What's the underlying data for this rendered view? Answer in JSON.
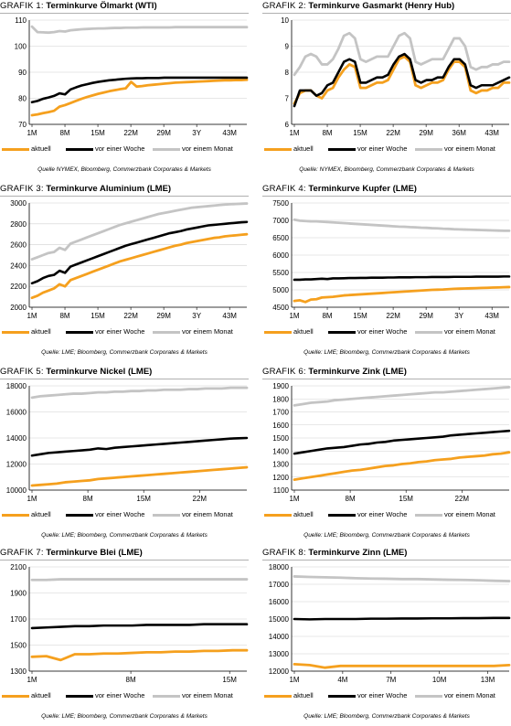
{
  "colors": {
    "aktuell": "#f5a01e",
    "woche": "#000000",
    "monat": "#c4c4c4",
    "grid": "#d0d0d0"
  },
  "chart_data": [
    {
      "type": "line",
      "caption": "GRAFIK 1:",
      "title": "Terminkurve Ölmarkt (WTI)",
      "ylim": [
        70,
        110
      ],
      "yticks": [
        70,
        80,
        90,
        100,
        110
      ],
      "xlabels": [
        "1M",
        "8M",
        "15M",
        "22M",
        "29M",
        "3Y",
        "43M"
      ],
      "source": "Quelle NYMEX, Bloomberg, Commerzbank Corporates & Markets",
      "series": [
        {
          "name": "aktuell",
          "values": [
            73.5,
            73.8,
            74.3,
            74.7,
            75.2,
            76.8,
            77.4,
            78.2,
            79.0,
            79.8,
            80.5,
            81.1,
            81.7,
            82.2,
            82.7,
            83.1,
            83.5,
            83.8,
            86.3,
            84.5,
            84.7,
            85.0,
            85.2,
            85.4,
            85.6,
            85.8,
            86.0,
            86.1,
            86.2,
            86.3,
            86.4,
            86.5,
            86.6,
            86.7,
            86.8,
            86.9,
            86.9,
            87.0,
            87.0,
            87.1
          ]
        },
        {
          "name": "vor einer Woche",
          "values": [
            78.5,
            79.0,
            79.8,
            80.3,
            80.9,
            81.9,
            81.5,
            83.4,
            84.2,
            84.9,
            85.4,
            85.9,
            86.3,
            86.6,
            86.9,
            87.1,
            87.3,
            87.5,
            87.6,
            87.7,
            87.7,
            87.8,
            87.8,
            87.8,
            87.9,
            87.9,
            87.9,
            87.9,
            87.9,
            87.9,
            87.9,
            87.9,
            87.9,
            87.9,
            87.9,
            87.9,
            87.9,
            87.9,
            87.9,
            87.9
          ]
        },
        {
          "name": "vor einem Monat",
          "values": [
            107.5,
            105.4,
            105.3,
            105.2,
            105.4,
            105.8,
            105.6,
            106.1,
            106.3,
            106.5,
            106.6,
            106.7,
            106.8,
            106.8,
            106.9,
            107.0,
            107.0,
            107.1,
            107.1,
            107.1,
            107.2,
            107.2,
            107.2,
            107.2,
            107.2,
            107.2,
            107.3,
            107.3,
            107.3,
            107.3,
            107.3,
            107.3,
            107.3,
            107.3,
            107.3,
            107.3,
            107.3,
            107.3,
            107.3,
            107.3
          ]
        }
      ]
    },
    {
      "type": "line",
      "caption": "GRAFIK 2:",
      "title": "Terminkurve Gasmarkt (Henry Hub)",
      "ylim": [
        6,
        10
      ],
      "yticks": [
        6,
        7,
        8,
        9,
        10
      ],
      "xlabels": [
        "1M",
        "8M",
        "15M",
        "22M",
        "29M",
        "36M",
        "43M"
      ],
      "source": "Quelle: NYMEX, Bloomberg, Commerzbank Corporates & Markets",
      "series": [
        {
          "name": "aktuell",
          "values": [
            6.8,
            7.2,
            7.3,
            7.3,
            7.1,
            7.0,
            7.3,
            7.4,
            7.8,
            8.1,
            8.3,
            8.2,
            7.4,
            7.4,
            7.5,
            7.6,
            7.6,
            7.7,
            8.1,
            8.5,
            8.6,
            8.4,
            7.5,
            7.4,
            7.5,
            7.6,
            7.6,
            7.7,
            8.1,
            8.4,
            8.4,
            8.2,
            7.3,
            7.2,
            7.3,
            7.3,
            7.4,
            7.4,
            7.6,
            7.6
          ]
        },
        {
          "name": "vor einer Woche",
          "values": [
            6.7,
            7.3,
            7.3,
            7.3,
            7.1,
            7.2,
            7.5,
            7.6,
            8.0,
            8.4,
            8.5,
            8.4,
            7.6,
            7.6,
            7.7,
            7.8,
            7.8,
            7.9,
            8.3,
            8.6,
            8.7,
            8.5,
            7.7,
            7.6,
            7.7,
            7.7,
            7.8,
            7.8,
            8.2,
            8.5,
            8.5,
            8.3,
            7.5,
            7.4,
            7.5,
            7.5,
            7.5,
            7.6,
            7.7,
            7.8
          ]
        },
        {
          "name": "vor einem Monat",
          "values": [
            7.9,
            8.2,
            8.6,
            8.7,
            8.6,
            8.3,
            8.3,
            8.5,
            8.9,
            9.4,
            9.5,
            9.3,
            8.5,
            8.4,
            8.5,
            8.6,
            8.6,
            8.6,
            9.0,
            9.4,
            9.5,
            9.3,
            8.4,
            8.3,
            8.4,
            8.5,
            8.5,
            8.5,
            8.9,
            9.3,
            9.3,
            9.0,
            8.2,
            8.1,
            8.2,
            8.2,
            8.3,
            8.3,
            8.4,
            8.4
          ]
        }
      ]
    },
    {
      "type": "line",
      "caption": "GRAFIK 3:",
      "title": "Terminkurve Aluminium (LME)",
      "ylim": [
        2000,
        3000
      ],
      "yticks": [
        2000,
        2200,
        2400,
        2600,
        2800,
        3000
      ],
      "xlabels": [
        "1M",
        "8M",
        "15M",
        "22M",
        "29M",
        "3Y",
        "43M"
      ],
      "source": "Quelle: LME; Bloomberg, Commerzbank Corporates & Markets",
      "series": [
        {
          "name": "aktuell",
          "values": [
            2090,
            2110,
            2140,
            2160,
            2180,
            2220,
            2200,
            2260,
            2280,
            2300,
            2320,
            2340,
            2360,
            2380,
            2400,
            2420,
            2440,
            2455,
            2470,
            2485,
            2500,
            2515,
            2530,
            2545,
            2560,
            2575,
            2590,
            2600,
            2615,
            2625,
            2635,
            2645,
            2655,
            2665,
            2670,
            2680,
            2685,
            2690,
            2695,
            2700
          ]
        },
        {
          "name": "vor einer Woche",
          "values": [
            2230,
            2250,
            2280,
            2300,
            2310,
            2350,
            2330,
            2390,
            2410,
            2430,
            2450,
            2470,
            2490,
            2510,
            2530,
            2550,
            2570,
            2590,
            2605,
            2620,
            2635,
            2650,
            2665,
            2680,
            2695,
            2710,
            2720,
            2730,
            2745,
            2755,
            2765,
            2775,
            2785,
            2790,
            2795,
            2800,
            2805,
            2810,
            2815,
            2818
          ]
        },
        {
          "name": "vor einem Monat",
          "values": [
            2460,
            2480,
            2500,
            2520,
            2530,
            2570,
            2550,
            2610,
            2630,
            2650,
            2670,
            2690,
            2710,
            2730,
            2750,
            2770,
            2790,
            2805,
            2820,
            2835,
            2850,
            2865,
            2880,
            2895,
            2905,
            2915,
            2925,
            2935,
            2945,
            2955,
            2960,
            2965,
            2970,
            2975,
            2980,
            2985,
            2988,
            2990,
            2993,
            2995
          ]
        }
      ]
    },
    {
      "type": "line",
      "caption": "GRAFIK 4:",
      "title": "Terminkurve Kupfer (LME)",
      "ylim": [
        4500,
        7500
      ],
      "yticks": [
        4500,
        5000,
        5500,
        6000,
        6500,
        7000,
        7500
      ],
      "xlabels": [
        "1M",
        "8M",
        "15M",
        "22M",
        "29M",
        "3Y",
        "43M"
      ],
      "source": "Quelle: LME; Bloomberg, Commerzbank Corporates & Markets",
      "series": [
        {
          "name": "aktuell",
          "values": [
            4680,
            4700,
            4650,
            4720,
            4730,
            4780,
            4790,
            4800,
            4820,
            4840,
            4850,
            4860,
            4870,
            4880,
            4890,
            4900,
            4910,
            4920,
            4930,
            4940,
            4950,
            4960,
            4970,
            4980,
            4990,
            5000,
            5005,
            5010,
            5020,
            5030,
            5035,
            5040,
            5045,
            5050,
            5055,
            5060,
            5065,
            5070,
            5075,
            5080
          ]
        },
        {
          "name": "vor einer Woche",
          "values": [
            5290,
            5290,
            5300,
            5300,
            5310,
            5320,
            5310,
            5330,
            5330,
            5335,
            5340,
            5340,
            5345,
            5345,
            5350,
            5350,
            5350,
            5355,
            5355,
            5360,
            5360,
            5360,
            5365,
            5365,
            5365,
            5370,
            5370,
            5370,
            5370,
            5375,
            5375,
            5375,
            5375,
            5380,
            5380,
            5380,
            5380,
            5380,
            5385,
            5385
          ]
        },
        {
          "name": "vor einem Monat",
          "values": [
            7020,
            6990,
            6980,
            6970,
            6970,
            6960,
            6950,
            6940,
            6930,
            6920,
            6910,
            6900,
            6890,
            6880,
            6870,
            6860,
            6850,
            6840,
            6830,
            6820,
            6815,
            6805,
            6800,
            6790,
            6785,
            6775,
            6770,
            6760,
            6755,
            6745,
            6740,
            6735,
            6730,
            6725,
            6720,
            6715,
            6710,
            6705,
            6700,
            6700
          ]
        }
      ]
    },
    {
      "type": "line",
      "caption": "GRAFIK 5:",
      "title": "Terminkurve Nickel (LME)",
      "ylim": [
        10000,
        18000
      ],
      "yticks": [
        10000,
        12000,
        14000,
        16000,
        18000
      ],
      "xlabels": [
        "1M",
        "8M",
        "15M",
        "22M"
      ],
      "source": "Quelle: LME; Bloomberg, Commerzbank Corporates & Markets",
      "series": [
        {
          "name": "aktuell",
          "values": [
            10350,
            10400,
            10450,
            10500,
            10600,
            10650,
            10700,
            10750,
            10850,
            10900,
            10950,
            11000,
            11050,
            11100,
            11150,
            11200,
            11250,
            11300,
            11350,
            11400,
            11450,
            11500,
            11550,
            11600,
            11650,
            11700,
            11750
          ]
        },
        {
          "name": "vor einer Woche",
          "values": [
            12650,
            12750,
            12850,
            12900,
            12950,
            13000,
            13050,
            13100,
            13200,
            13150,
            13250,
            13300,
            13350,
            13400,
            13450,
            13500,
            13550,
            13600,
            13650,
            13700,
            13750,
            13800,
            13850,
            13900,
            13950,
            13980,
            14000
          ]
        },
        {
          "name": "vor einem Monat",
          "values": [
            17100,
            17200,
            17250,
            17300,
            17350,
            17400,
            17400,
            17450,
            17500,
            17500,
            17550,
            17550,
            17600,
            17600,
            17650,
            17650,
            17700,
            17700,
            17700,
            17750,
            17750,
            17800,
            17800,
            17800,
            17850,
            17850,
            17850
          ]
        }
      ]
    },
    {
      "type": "line",
      "caption": "GRAFIK 6:",
      "title": "Terminkurve Zink (LME)",
      "ylim": [
        1100,
        1900
      ],
      "yticks": [
        1100,
        1200,
        1300,
        1400,
        1500,
        1600,
        1700,
        1800,
        1900
      ],
      "xlabels": [
        "1M",
        "8M",
        "15M",
        "22M"
      ],
      "source": "Quelle: LME; Bloomberg, Commerzbank Corporates & Markets",
      "series": [
        {
          "name": "aktuell",
          "values": [
            1180,
            1190,
            1200,
            1210,
            1220,
            1230,
            1240,
            1250,
            1255,
            1265,
            1275,
            1285,
            1290,
            1300,
            1305,
            1315,
            1320,
            1330,
            1335,
            1340,
            1350,
            1355,
            1360,
            1365,
            1375,
            1380,
            1390
          ]
        },
        {
          "name": "vor einer Woche",
          "values": [
            1380,
            1390,
            1400,
            1410,
            1420,
            1425,
            1430,
            1440,
            1450,
            1455,
            1465,
            1470,
            1480,
            1485,
            1490,
            1495,
            1500,
            1505,
            1510,
            1520,
            1525,
            1530,
            1535,
            1540,
            1545,
            1550,
            1555
          ]
        },
        {
          "name": "vor einem Monat",
          "values": [
            1750,
            1760,
            1770,
            1775,
            1780,
            1790,
            1795,
            1800,
            1805,
            1810,
            1815,
            1820,
            1825,
            1830,
            1835,
            1840,
            1845,
            1850,
            1850,
            1855,
            1860,
            1865,
            1870,
            1875,
            1880,
            1885,
            1890
          ]
        }
      ]
    },
    {
      "type": "line",
      "caption": "GRAFIK 7:",
      "title": "Terminkurve Blei (LME)",
      "ylim": [
        1300,
        2100
      ],
      "yticks": [
        1300,
        1500,
        1700,
        1900,
        2100
      ],
      "xlabels": [
        "1M",
        "8M",
        "15M"
      ],
      "source": "Quelle: LME; Bloomberg, Commerzbank Corporates & Markets",
      "series": [
        {
          "name": "aktuell",
          "values": [
            1410,
            1415,
            1385,
            1430,
            1430,
            1435,
            1435,
            1440,
            1445,
            1445,
            1450,
            1450,
            1455,
            1455,
            1460,
            1460
          ]
        },
        {
          "name": "vor einer Woche",
          "values": [
            1630,
            1635,
            1640,
            1645,
            1645,
            1650,
            1650,
            1650,
            1655,
            1655,
            1655,
            1655,
            1660,
            1660,
            1660,
            1660
          ]
        },
        {
          "name": "vor einem Monat",
          "values": [
            2000,
            2000,
            2005,
            2005,
            2005,
            2005,
            2005,
            2005,
            2005,
            2005,
            2005,
            2005,
            2005,
            2005,
            2005,
            2005
          ]
        }
      ]
    },
    {
      "type": "line",
      "caption": "GRAFIK 8:",
      "title": "Terminkurve Zinn (LME)",
      "ylim": [
        12000,
        18000
      ],
      "yticks": [
        12000,
        13000,
        14000,
        15000,
        16000,
        17000,
        18000
      ],
      "xlabels": [
        "1M",
        "4M",
        "7M",
        "10M",
        "13M"
      ],
      "source": "Quelle: LME; Bloomberg, Commerzbank Corporates & Markets",
      "series": [
        {
          "name": "aktuell",
          "values": [
            12400,
            12350,
            12200,
            12300,
            12300,
            12300,
            12300,
            12300,
            12300,
            12300,
            12300,
            12300,
            12300,
            12300,
            12350
          ]
        },
        {
          "name": "vor einer Woche",
          "values": [
            15000,
            14980,
            15000,
            15000,
            15000,
            15020,
            15020,
            15030,
            15030,
            15040,
            15040,
            15050,
            15050,
            15060,
            15060
          ]
        },
        {
          "name": "vor einem Monat",
          "values": [
            17450,
            17420,
            17400,
            17380,
            17350,
            17330,
            17320,
            17300,
            17300,
            17280,
            17260,
            17250,
            17230,
            17200,
            17180
          ]
        }
      ]
    }
  ]
}
